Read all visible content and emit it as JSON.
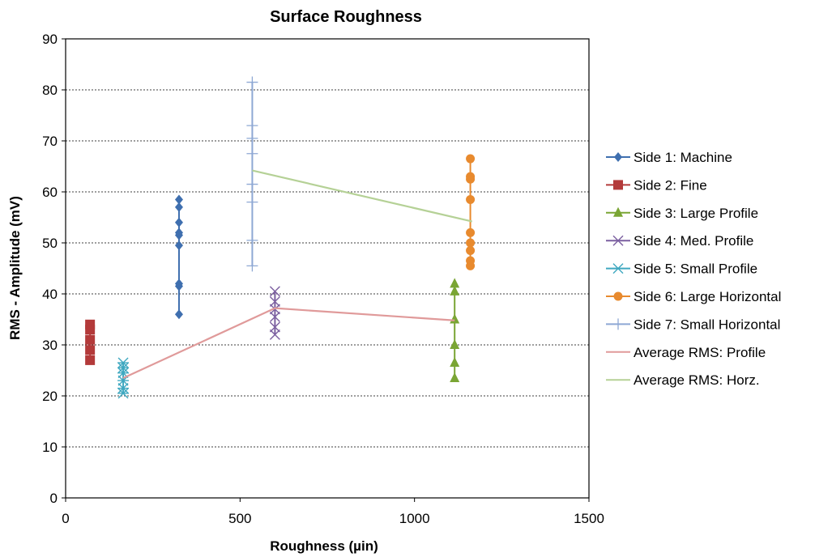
{
  "chart_data": {
    "type": "scatter",
    "title": "Surface Roughness",
    "xlabel": "Roughness (µin)",
    "ylabel": "RMS - Amplitude (mV)",
    "xlim": [
      0,
      1500
    ],
    "ylim": [
      0,
      90
    ],
    "xticks": [
      0,
      500,
      1000,
      1500
    ],
    "yticks": [
      0,
      10,
      20,
      30,
      40,
      50,
      60,
      70,
      80,
      90
    ],
    "grid": "horizontal dashed",
    "legend_position": "right",
    "series": [
      {
        "name": "Side 1: Machine",
        "color": "#3F6FAF",
        "marker": "diamond",
        "line": "vertical",
        "points": [
          [
            325,
            36
          ],
          [
            325,
            41.5
          ],
          [
            325,
            42
          ],
          [
            325,
            49.5
          ],
          [
            325,
            51.5
          ],
          [
            325,
            52
          ],
          [
            325,
            54
          ],
          [
            325,
            57
          ],
          [
            325,
            58.5
          ]
        ]
      },
      {
        "name": "Side 2: Fine",
        "color": "#B33A3A",
        "marker": "square",
        "line": "vertical",
        "points": [
          [
            70,
            27
          ],
          [
            70,
            29
          ],
          [
            70,
            31
          ],
          [
            70,
            33
          ],
          [
            70,
            34
          ]
        ]
      },
      {
        "name": "Side 3: Large Profile",
        "color": "#7AA534",
        "marker": "triangle",
        "line": "vertical",
        "points": [
          [
            1115,
            23.5
          ],
          [
            1115,
            26.5
          ],
          [
            1115,
            30
          ],
          [
            1115,
            35
          ],
          [
            1115,
            40.5
          ],
          [
            1115,
            42
          ]
        ]
      },
      {
        "name": "Side 4: Med. Profile",
        "color": "#7B5FA0",
        "marker": "x",
        "line": "vertical",
        "points": [
          [
            600,
            32
          ],
          [
            600,
            33.5
          ],
          [
            600,
            35.5
          ],
          [
            600,
            37
          ],
          [
            600,
            38.5
          ],
          [
            600,
            40.5
          ]
        ]
      },
      {
        "name": "Side 5: Small Profile",
        "color": "#3FA8C0",
        "marker": "star",
        "line": "vertical",
        "points": [
          [
            165,
            20.5
          ],
          [
            165,
            21.5
          ],
          [
            165,
            23
          ],
          [
            165,
            24.5
          ],
          [
            165,
            25.5
          ],
          [
            165,
            26.5
          ]
        ]
      },
      {
        "name": "Side 6: Large Horizontal",
        "color": "#E88A2E",
        "marker": "circle",
        "line": "vertical",
        "points": [
          [
            1160,
            45.5
          ],
          [
            1160,
            46.5
          ],
          [
            1160,
            48.5
          ],
          [
            1160,
            50
          ],
          [
            1160,
            52
          ],
          [
            1160,
            58.5
          ],
          [
            1160,
            62.5
          ],
          [
            1160,
            63
          ],
          [
            1160,
            66.5
          ]
        ]
      },
      {
        "name": "Side 7: Small Horizontal",
        "color": "#8EA8D4",
        "marker": "plus",
        "line": "vertical",
        "points": [
          [
            535,
            45.5
          ],
          [
            535,
            50.5
          ],
          [
            535,
            58
          ],
          [
            535,
            61.5
          ],
          [
            535,
            67.5
          ],
          [
            535,
            70.5
          ],
          [
            535,
            73
          ],
          [
            535,
            81.5
          ]
        ]
      },
      {
        "name": "Average RMS: Profile",
        "color": "#E09A9A",
        "marker": "none",
        "line": "connect",
        "points": [
          [
            165,
            23.5
          ],
          [
            600,
            37.2
          ],
          [
            1115,
            34.8
          ]
        ]
      },
      {
        "name": "Average RMS: Horz.",
        "color": "#B5D196",
        "marker": "none",
        "line": "connect",
        "points": [
          [
            535,
            64.2
          ],
          [
            1165,
            54.2
          ]
        ]
      }
    ]
  }
}
